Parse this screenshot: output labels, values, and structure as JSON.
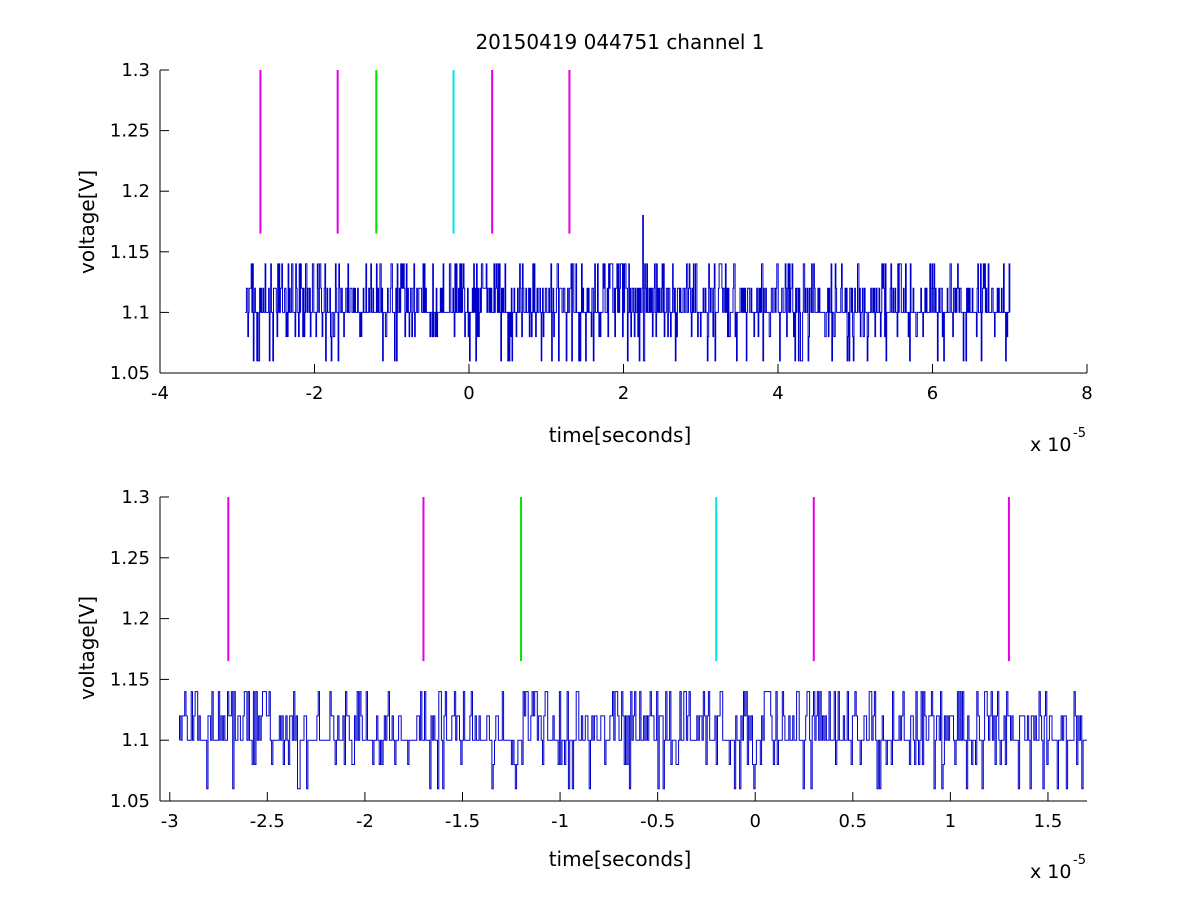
{
  "chart_data": [
    {
      "type": "line",
      "title": "20150419 044751 channel 1",
      "xlabel": "time[seconds]",
      "ylabel": "voltage[V]",
      "x_multiplier": {
        "base": "x 10",
        "exponent": "-5"
      },
      "xlim": [
        -4,
        8
      ],
      "ylim": [
        1.05,
        1.3
      ],
      "x_ticks": [
        -4,
        -2,
        0,
        2,
        4,
        6,
        8
      ],
      "x_tick_labels": [
        "-4",
        "-2",
        "0",
        "2",
        "4",
        "6",
        "8"
      ],
      "y_ticks": [
        1.05,
        1.1,
        1.15,
        1.2,
        1.25,
        1.3
      ],
      "y_tick_labels": [
        "1.05",
        "1.1",
        "1.15",
        "1.2",
        "1.25",
        "1.3"
      ],
      "grid": false,
      "signal": {
        "color": "#0000cc",
        "x_range": [
          -2.9,
          7.0
        ],
        "levels": [
          1.06,
          1.08,
          1.1,
          1.12,
          1.14
        ],
        "baseline": 1.1,
        "spike": {
          "x": 2.25,
          "y": 1.18
        }
      },
      "markers": [
        {
          "x": -2.7,
          "y_range": [
            1.165,
            1.3
          ],
          "color": "#e600e6"
        },
        {
          "x": -1.7,
          "y_range": [
            1.165,
            1.3
          ],
          "color": "#e600e6"
        },
        {
          "x": -1.2,
          "y_range": [
            1.165,
            1.3
          ],
          "color": "#00e600"
        },
        {
          "x": -0.2,
          "y_range": [
            1.165,
            1.3
          ],
          "color": "#00e6e6"
        },
        {
          "x": 0.3,
          "y_range": [
            1.165,
            1.3
          ],
          "color": "#e600e6"
        },
        {
          "x": 1.3,
          "y_range": [
            1.165,
            1.3
          ],
          "color": "#e600e6"
        }
      ]
    },
    {
      "type": "line",
      "title": "",
      "xlabel": "time[seconds]",
      "ylabel": "voltage[V]",
      "x_multiplier": {
        "base": "x 10",
        "exponent": "-5"
      },
      "xlim": [
        -3.05,
        1.7
      ],
      "ylim": [
        1.05,
        1.3
      ],
      "x_ticks": [
        -3,
        -2.5,
        -2,
        -1.5,
        -1,
        -0.5,
        0,
        0.5,
        1,
        1.5
      ],
      "x_tick_labels": [
        "-3",
        "-2.5",
        "-2",
        "-1.5",
        "-1",
        "-0.5",
        "0",
        "0.5",
        "1",
        "1.5"
      ],
      "y_ticks": [
        1.05,
        1.1,
        1.15,
        1.2,
        1.25,
        1.3
      ],
      "y_tick_labels": [
        "1.05",
        "1.1",
        "1.15",
        "1.2",
        "1.25",
        "1.3"
      ],
      "grid": false,
      "signal": {
        "color": "#0000cc",
        "x_range": [
          -2.95,
          1.7
        ],
        "levels": [
          1.06,
          1.08,
          1.1,
          1.12,
          1.14
        ],
        "baseline": 1.1
      },
      "markers": [
        {
          "x": -2.7,
          "y_range": [
            1.165,
            1.3
          ],
          "color": "#e600e6"
        },
        {
          "x": -1.7,
          "y_range": [
            1.165,
            1.3
          ],
          "color": "#e600e6"
        },
        {
          "x": -1.2,
          "y_range": [
            1.165,
            1.3
          ],
          "color": "#00e600"
        },
        {
          "x": -0.2,
          "y_range": [
            1.165,
            1.3
          ],
          "color": "#00e6e6"
        },
        {
          "x": 0.3,
          "y_range": [
            1.165,
            1.3
          ],
          "color": "#e600e6"
        },
        {
          "x": 1.3,
          "y_range": [
            1.165,
            1.3
          ],
          "color": "#e600e6"
        }
      ]
    }
  ]
}
